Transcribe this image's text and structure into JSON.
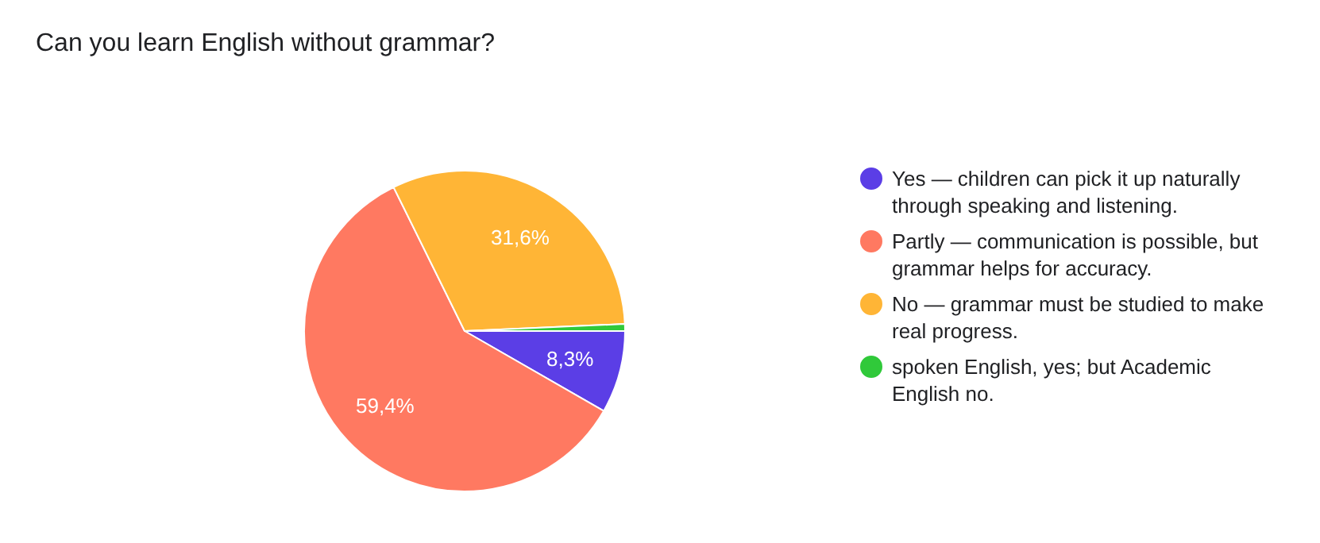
{
  "chart_data": {
    "type": "pie",
    "title": "Can you learn English without grammar?",
    "categories": [
      "Yes — children can pick it up naturally through speaking and listening.",
      "Partly — communication is possible, but grammar helps for accuracy.",
      "No — grammar must be studied to make real progress.",
      "spoken English, yes; but Academic English no."
    ],
    "values": [
      8.3,
      59.4,
      31.6,
      0.7
    ],
    "colors": [
      "#5b3ee6",
      "#ff7961",
      "#ffb536",
      "#30c93a"
    ],
    "value_labels": [
      "8,3%",
      "59,4%",
      "31,6%",
      null
    ],
    "legend": "right"
  }
}
